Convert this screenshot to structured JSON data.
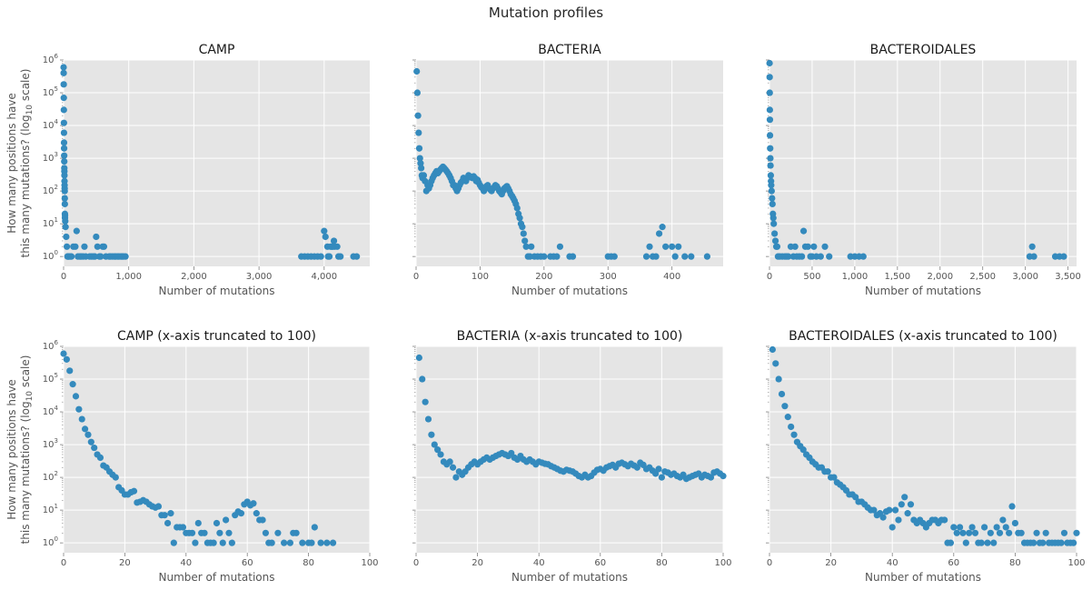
{
  "figure": {
    "suptitle": "Mutation profiles"
  },
  "chart_data": [
    {
      "type": "scatter",
      "title": "CAMP",
      "xlabel": "Number of mutations",
      "ylabel": [
        "How many positions have",
        "this many mutations? (log",
        "10",
        " scale)"
      ],
      "xlim": [
        0,
        4700
      ],
      "xticks": [
        0,
        1000,
        2000,
        3000,
        4000
      ],
      "xticklabels": [
        "0",
        "1,000",
        "2,000",
        "3,000",
        "4,000"
      ],
      "yscale": "log",
      "ylim": [
        0.5,
        1000000
      ],
      "grid": true,
      "color": "#348abd",
      "x": [
        0,
        1,
        2,
        3,
        4,
        5,
        6,
        7,
        8,
        9,
        10,
        11,
        12,
        13,
        14,
        15,
        16,
        17,
        18,
        19,
        20,
        21,
        22,
        25,
        30,
        40,
        50,
        60,
        70,
        80,
        100,
        120,
        150,
        180,
        200,
        220,
        250,
        270,
        300,
        320,
        340,
        400,
        430,
        460,
        480,
        500,
        520,
        550,
        570,
        600,
        620,
        650,
        700,
        720,
        750,
        780,
        800,
        830,
        850,
        880,
        900,
        920,
        950,
        4000,
        4020,
        4050,
        4100,
        4120,
        4150,
        3650,
        3700,
        3750,
        3800,
        3850,
        3900,
        3950,
        4060,
        4080,
        4130,
        4160,
        4200,
        4220,
        4250,
        4450,
        4500
      ],
      "y": [
        600000,
        400000,
        180000,
        70000,
        30000,
        12000,
        6000,
        3000,
        2000,
        1200,
        800,
        500,
        400,
        300,
        200,
        150,
        120,
        100,
        60,
        40,
        20,
        15,
        18,
        12,
        8,
        4,
        2,
        1,
        1,
        1,
        1,
        1,
        2,
        2,
        6,
        1,
        1,
        1,
        1,
        2,
        1,
        1,
        1,
        1,
        1,
        4,
        2,
        1,
        1,
        2,
        2,
        1,
        1,
        1,
        1,
        1,
        1,
        1,
        1,
        1,
        1,
        1,
        1,
        6,
        4,
        2,
        2,
        2,
        3,
        1,
        1,
        1,
        1,
        1,
        1,
        1,
        1,
        1,
        2,
        2,
        2,
        1,
        1,
        1,
        1
      ]
    },
    {
      "type": "scatter",
      "title": "BACTERIA",
      "xlabel": "Number of mutations",
      "xlim": [
        0,
        480
      ],
      "xticks": [
        0,
        100,
        200,
        300,
        400
      ],
      "xticklabels": [
        "0",
        "100",
        "200",
        "300",
        "400"
      ],
      "yscale": "log",
      "ylim": [
        0.5,
        1000000
      ],
      "grid": true,
      "color": "#348abd",
      "x": [
        1,
        2,
        3,
        4,
        5,
        6,
        7,
        8,
        9,
        10,
        12,
        14,
        16,
        18,
        20,
        22,
        24,
        26,
        28,
        30,
        32,
        34,
        36,
        38,
        40,
        42,
        44,
        46,
        48,
        50,
        52,
        54,
        56,
        58,
        60,
        62,
        64,
        66,
        68,
        70,
        72,
        74,
        76,
        78,
        80,
        82,
        84,
        86,
        88,
        90,
        92,
        94,
        96,
        98,
        100,
        102,
        104,
        106,
        108,
        110,
        112,
        114,
        116,
        118,
        120,
        122,
        124,
        126,
        128,
        130,
        132,
        134,
        136,
        138,
        140,
        142,
        144,
        146,
        148,
        150,
        152,
        154,
        156,
        158,
        160,
        162,
        164,
        166,
        168,
        170,
        172,
        175,
        178,
        180,
        185,
        190,
        195,
        200,
        210,
        215,
        220,
        225,
        240,
        245,
        300,
        305,
        310,
        360,
        365,
        370,
        375,
        380,
        385,
        390,
        400,
        405,
        410,
        420,
        430,
        455
      ],
      "y": [
        450000,
        100000,
        20000,
        6000,
        2000,
        1000,
        700,
        500,
        300,
        250,
        300,
        200,
        100,
        150,
        120,
        150,
        200,
        250,
        300,
        350,
        400,
        350,
        400,
        450,
        500,
        550,
        500,
        450,
        400,
        350,
        300,
        250,
        200,
        150,
        150,
        120,
        100,
        120,
        150,
        180,
        200,
        250,
        220,
        200,
        250,
        300,
        280,
        260,
        250,
        280,
        250,
        200,
        220,
        180,
        150,
        130,
        120,
        100,
        120,
        140,
        150,
        120,
        110,
        100,
        120,
        130,
        150,
        140,
        120,
        100,
        90,
        80,
        100,
        120,
        130,
        140,
        120,
        100,
        80,
        70,
        60,
        50,
        40,
        30,
        20,
        15,
        10,
        8,
        5,
        3,
        2,
        1,
        1,
        2,
        1,
        1,
        1,
        1,
        1,
        1,
        1,
        2,
        1,
        1,
        1,
        1,
        1,
        1,
        2,
        1,
        1,
        5,
        8,
        2,
        2,
        1,
        2,
        1,
        1,
        1
      ]
    },
    {
      "type": "scatter",
      "title": "BACTEROIDALES",
      "xlabel": "Number of mutations",
      "xlim": [
        0,
        3600
      ],
      "xticks": [
        0,
        500,
        1000,
        1500,
        2000,
        2500,
        3000,
        3500
      ],
      "xticklabels": [
        "0",
        "500",
        "1,000",
        "1,500",
        "2,000",
        "2,500",
        "3,000",
        "3,500"
      ],
      "yscale": "log",
      "ylim": [
        0.5,
        1000000
      ],
      "grid": true,
      "color": "#348abd",
      "x": [
        1,
        2,
        3,
        4,
        5,
        6,
        8,
        10,
        12,
        15,
        18,
        20,
        25,
        30,
        35,
        40,
        45,
        50,
        60,
        70,
        80,
        90,
        100,
        120,
        150,
        180,
        200,
        220,
        250,
        280,
        300,
        320,
        350,
        380,
        400,
        420,
        450,
        480,
        500,
        520,
        550,
        600,
        650,
        700,
        950,
        1000,
        1050,
        1100,
        3050,
        3080,
        3100,
        3350,
        3400,
        3450
      ],
      "y": [
        800000,
        300000,
        100000,
        30000,
        15000,
        5000,
        2000,
        1000,
        600,
        300,
        200,
        150,
        100,
        60,
        40,
        20,
        15,
        10,
        5,
        3,
        2,
        2,
        1,
        1,
        1,
        1,
        1,
        1,
        2,
        1,
        2,
        1,
        1,
        1,
        6,
        2,
        2,
        1,
        1,
        2,
        1,
        1,
        2,
        1,
        1,
        1,
        1,
        1,
        1,
        2,
        1,
        1,
        1,
        1
      ]
    },
    {
      "type": "scatter",
      "title": "CAMP (x-axis truncated to 100)",
      "xlabel": "Number of mutations",
      "ylabel": [
        "How many positions have",
        "this many mutations? (log",
        "10",
        " scale)"
      ],
      "xlim": [
        0,
        100
      ],
      "xticks": [
        0,
        20,
        40,
        60,
        80,
        100
      ],
      "xticklabels": [
        "0",
        "20",
        "40",
        "60",
        "80",
        "100"
      ],
      "yscale": "log",
      "ylim": [
        0.5,
        1000000
      ],
      "grid": true,
      "color": "#348abd",
      "x": [
        0,
        1,
        2,
        3,
        4,
        5,
        6,
        7,
        8,
        9,
        10,
        11,
        12,
        13,
        14,
        15,
        16,
        17,
        18,
        19,
        20,
        21,
        22,
        23,
        24,
        25,
        26,
        27,
        28,
        29,
        30,
        31,
        32,
        33,
        34,
        35,
        36,
        37,
        38,
        39,
        40,
        41,
        42,
        43,
        44,
        45,
        46,
        47,
        48,
        49,
        50,
        51,
        52,
        53,
        54,
        55,
        56,
        57,
        58,
        59,
        60,
        61,
        62,
        63,
        64,
        65,
        66,
        67,
        68,
        70,
        72,
        74,
        75,
        76,
        78,
        80,
        81,
        82,
        84,
        86,
        88
      ],
      "y": [
        600000,
        400000,
        180000,
        70000,
        30000,
        12000,
        6000,
        3000,
        2000,
        1200,
        800,
        500,
        400,
        230,
        200,
        150,
        120,
        100,
        50,
        40,
        30,
        30,
        35,
        38,
        17,
        18,
        20,
        18,
        15,
        13,
        12,
        13,
        7,
        7,
        4,
        8,
        1,
        3,
        3,
        3,
        2,
        2,
        2,
        1,
        4,
        2,
        2,
        1,
        1,
        1,
        4,
        2,
        1,
        5,
        2,
        1,
        7,
        9,
        8,
        15,
        18,
        14,
        16,
        8,
        5,
        5,
        2,
        1,
        1,
        2,
        1,
        1,
        2,
        2,
        1,
        1,
        1,
        3,
        1,
        1,
        1
      ]
    },
    {
      "type": "scatter",
      "title": "BACTERIA (x-axis truncated to 100)",
      "xlabel": "Number of mutations",
      "xlim": [
        0,
        100
      ],
      "xticks": [
        0,
        20,
        40,
        60,
        80,
        100
      ],
      "xticklabels": [
        "0",
        "20",
        "40",
        "60",
        "80",
        "100"
      ],
      "yscale": "log",
      "ylim": [
        0.5,
        1000000
      ],
      "grid": true,
      "color": "#348abd",
      "x": [
        1,
        2,
        3,
        4,
        5,
        6,
        7,
        8,
        9,
        10,
        11,
        12,
        13,
        14,
        15,
        16,
        17,
        18,
        19,
        20,
        21,
        22,
        23,
        24,
        25,
        26,
        27,
        28,
        29,
        30,
        31,
        32,
        33,
        34,
        35,
        36,
        37,
        38,
        39,
        40,
        41,
        42,
        43,
        44,
        45,
        46,
        47,
        48,
        49,
        50,
        51,
        52,
        53,
        54,
        55,
        56,
        57,
        58,
        59,
        60,
        61,
        62,
        63,
        64,
        65,
        66,
        67,
        68,
        69,
        70,
        71,
        72,
        73,
        74,
        75,
        76,
        77,
        78,
        79,
        80,
        81,
        82,
        83,
        84,
        85,
        86,
        87,
        88,
        89,
        90,
        91,
        92,
        93,
        94,
        95,
        96,
        97,
        98,
        99,
        100
      ],
      "y": [
        450000,
        100000,
        20000,
        6000,
        2000,
        1000,
        700,
        500,
        300,
        250,
        300,
        200,
        100,
        150,
        120,
        150,
        200,
        250,
        300,
        250,
        300,
        350,
        400,
        350,
        400,
        450,
        500,
        550,
        500,
        450,
        550,
        400,
        350,
        450,
        350,
        300,
        350,
        300,
        250,
        300,
        280,
        260,
        250,
        220,
        200,
        180,
        160,
        150,
        170,
        160,
        150,
        130,
        110,
        100,
        120,
        100,
        110,
        140,
        170,
        180,
        160,
        200,
        220,
        240,
        200,
        260,
        280,
        250,
        220,
        260,
        230,
        200,
        280,
        240,
        180,
        200,
        160,
        130,
        180,
        100,
        150,
        140,
        120,
        130,
        110,
        100,
        120,
        90,
        100,
        110,
        120,
        130,
        100,
        120,
        110,
        100,
        140,
        150,
        130,
        110
      ]
    },
    {
      "type": "scatter",
      "title": "BACTEROIDALES (x-axis truncated to 100)",
      "xlabel": "Number of mutations",
      "xlim": [
        0,
        100
      ],
      "xticks": [
        0,
        20,
        40,
        60,
        80,
        100
      ],
      "xticklabels": [
        "0",
        "20",
        "40",
        "60",
        "80",
        "100"
      ],
      "yscale": "log",
      "ylim": [
        0.5,
        1000000
      ],
      "grid": true,
      "color": "#348abd",
      "x": [
        1,
        2,
        3,
        4,
        5,
        6,
        7,
        8,
        9,
        10,
        11,
        12,
        13,
        14,
        15,
        16,
        17,
        18,
        19,
        20,
        21,
        22,
        23,
        24,
        25,
        26,
        27,
        28,
        29,
        30,
        31,
        32,
        33,
        34,
        35,
        36,
        37,
        38,
        39,
        40,
        41,
        42,
        43,
        44,
        45,
        46,
        47,
        48,
        49,
        50,
        51,
        52,
        53,
        54,
        55,
        56,
        57,
        58,
        59,
        60,
        61,
        62,
        63,
        64,
        65,
        66,
        67,
        68,
        69,
        70,
        71,
        72,
        73,
        74,
        75,
        76,
        77,
        78,
        79,
        80,
        81,
        82,
        83,
        84,
        85,
        86,
        87,
        88,
        89,
        90,
        91,
        92,
        93,
        94,
        95,
        96,
        97,
        98,
        99,
        100
      ],
      "y": [
        800000,
        300000,
        100000,
        35000,
        15000,
        7000,
        3500,
        2000,
        1200,
        900,
        700,
        500,
        400,
        300,
        250,
        200,
        200,
        150,
        150,
        100,
        100,
        70,
        60,
        50,
        40,
        30,
        30,
        25,
        18,
        18,
        15,
        12,
        10,
        10,
        7,
        8,
        6,
        9,
        10,
        3,
        10,
        5,
        15,
        25,
        8,
        15,
        5,
        4,
        5,
        4,
        3,
        4,
        5,
        5,
        4,
        5,
        5,
        1,
        1,
        3,
        2,
        3,
        2,
        1,
        2,
        3,
        2,
        1,
        1,
        3,
        1,
        2,
        1,
        3,
        2,
        5,
        3,
        2,
        13,
        4,
        2,
        2,
        1,
        1,
        1,
        1,
        2,
        1,
        1,
        2,
        1,
        1,
        1,
        1,
        1,
        2,
        1,
        1,
        1,
        2
      ]
    }
  ]
}
